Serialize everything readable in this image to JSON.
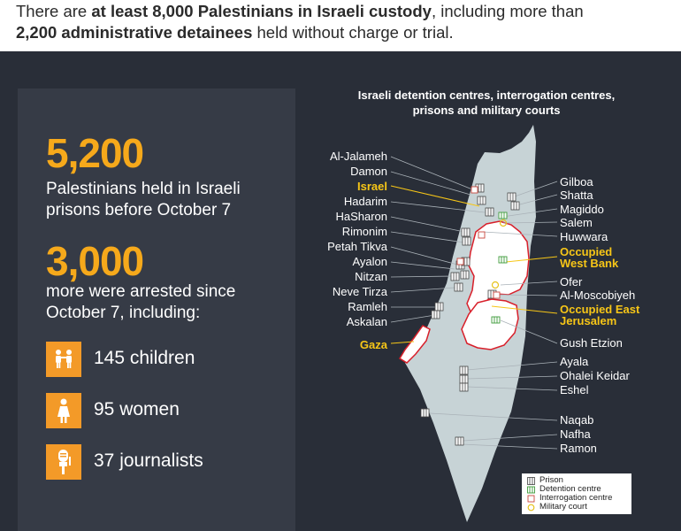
{
  "header": {
    "line1_a": "There are ",
    "line1_b": "at least 8,000 Palestinians in Israeli custody",
    "line1_c": ", including more than",
    "line2_a": "2,200 administrative detainees",
    "line2_b": " held without charge or trial."
  },
  "stats": {
    "held_number": "5,200",
    "held_line1": "Palestinians held in Israeli",
    "held_line2": "prisons before October 7",
    "arrested_number": "3,000",
    "arrested_line1": "more were arrested since",
    "arrested_line2": "October 7, including:"
  },
  "categories": [
    {
      "label": "145 children",
      "icon": "children-icon"
    },
    {
      "label": "95 women",
      "icon": "woman-icon"
    },
    {
      "label": "37 journalists",
      "icon": "microphone-icon"
    }
  ],
  "map": {
    "title_line1": "Israeli detention centres, interrogation centres,",
    "title_line2": "prisons and military courts",
    "left_labels": [
      "Al-Jalameh",
      "Damon",
      "Hadarim",
      "HaSharon",
      "Rimonim",
      "Petah Tikva",
      "Ayalon",
      "Nitzan",
      "Neve Tirza",
      "Ramleh",
      "Askalan"
    ],
    "right_labels": [
      "Gilboa",
      "Shatta",
      "Magiddo",
      "Salem",
      "Huwwara",
      "Ofer",
      "Al-Moscobiyeh",
      "Gush Etzion",
      "Ayala",
      "Ohalei Keidar",
      "Eshel",
      "Naqab",
      "Nafha",
      "Ramon"
    ],
    "regions": {
      "israel": "Israel",
      "west_bank_1": "Occupied",
      "west_bank_2": "West Bank",
      "east_jerusalem_1": "Occupied East",
      "east_jerusalem_2": "Jerusalem",
      "gaza": "Gaza"
    },
    "colors": {
      "land": "#c7d3d6",
      "territory_border": "#d81f2a",
      "highlight": "#f7c617",
      "prison": "#555555",
      "detention": "#3f9b3b",
      "interrogation": "#c9463d",
      "court": "#e6c21c"
    }
  },
  "legend": {
    "prison": "Prison",
    "detention": "Detention centre",
    "interrogation": "Interrogation centre",
    "court": "Military court"
  }
}
